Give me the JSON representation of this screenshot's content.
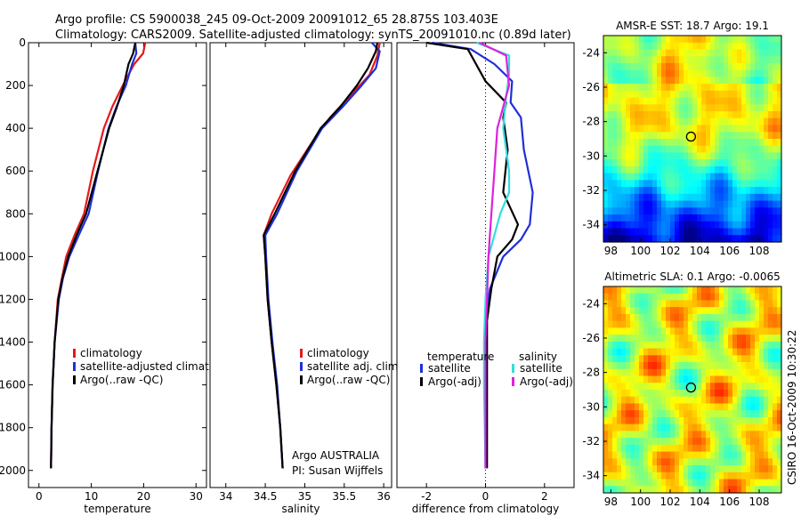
{
  "figure": {
    "title_line1": "Argo profile: CS 5900038_245 09-Oct-2009 20091012_65 28.875S 103.403E",
    "title_line2": "Climatology: CARS2009. Satellite-adjusted climatology: synTS_20091010.nc (0.89d later)",
    "side_stamp": "CSIRO 16-Oct-2009 10:30:22",
    "float_note_line1": "Argo AUSTRALIA",
    "float_note_line2": "PI: Susan Wijffels",
    "colors": {
      "climatology": "#e41a1c",
      "satellite": "#1f2fd8",
      "argo": "#000000",
      "satellite_salinity": "#33dddd",
      "argo_salinity": "#dd22dd"
    }
  },
  "chart_data": [
    {
      "type": "line",
      "id": "temperature",
      "xlabel": "temperature",
      "ylabel": "",
      "xlim": [
        -2,
        32
      ],
      "ylim": [
        2080,
        0
      ],
      "xticks": [
        0,
        10,
        20,
        30
      ],
      "yticks": [
        0,
        200,
        400,
        600,
        800,
        1000,
        1200,
        1400,
        1600,
        1800,
        2000
      ],
      "legend_position": "lower-middle",
      "legend": [
        "climatology",
        "satellite-adjusted climatolog",
        "Argo(..raw -QC)"
      ],
      "series": [
        {
          "name": "climatology",
          "color": "#e41a1c",
          "x": [
            20.3,
            19.9,
            18.2,
            16.0,
            14.0,
            12.4,
            10.3,
            8.6,
            6.8,
            5.2,
            4.4,
            3.6,
            3.0,
            2.6,
            2.4,
            2.3
          ],
          "y": [
            0,
            50,
            100,
            200,
            300,
            400,
            600,
            800,
            900,
            1000,
            1100,
            1200,
            1400,
            1600,
            1800,
            1990
          ]
        },
        {
          "name": "satellite-adjusted climatolog",
          "color": "#1f2fd8",
          "x": [
            18.4,
            18.6,
            17.8,
            16.6,
            14.8,
            13.3,
            11.3,
            9.5,
            7.6,
            5.8,
            4.6,
            3.8,
            3.0,
            2.6,
            2.4,
            2.3
          ],
          "y": [
            0,
            50,
            100,
            200,
            300,
            400,
            600,
            800,
            900,
            1000,
            1100,
            1200,
            1400,
            1600,
            1800,
            1990
          ]
        },
        {
          "name": "Argo(..raw -QC)",
          "color": "#000000",
          "x": [
            18.4,
            18.0,
            17.1,
            16.2,
            14.9,
            13.4,
            11.2,
            9.0,
            7.2,
            5.6,
            4.5,
            3.7,
            3.0,
            2.6,
            2.4,
            2.3
          ],
          "y": [
            0,
            50,
            100,
            200,
            300,
            400,
            600,
            800,
            900,
            1000,
            1100,
            1200,
            1400,
            1600,
            1800,
            1990
          ]
        }
      ]
    },
    {
      "type": "line",
      "id": "salinity",
      "xlabel": "salinity",
      "ylabel": "",
      "xlim": [
        33.8,
        36.1
      ],
      "ylim": [
        2080,
        0
      ],
      "xticks": [
        34,
        34.5,
        35,
        35.5,
        36
      ],
      "yticks": [],
      "legend_position": "lower-right",
      "legend": [
        "climatology",
        "satellite adj. clim.",
        "Argo(..raw -QC)"
      ],
      "series": [
        {
          "name": "climatology",
          "color": "#e41a1c",
          "x": [
            35.95,
            35.92,
            35.82,
            35.57,
            35.32,
            35.12,
            34.82,
            34.58,
            34.48,
            34.5,
            34.53,
            34.58,
            34.64,
            34.69,
            34.72
          ],
          "y": [
            0,
            60,
            150,
            250,
            350,
            450,
            620,
            800,
            900,
            1000,
            1200,
            1400,
            1600,
            1800,
            1990
          ]
        },
        {
          "name": "satellite adj. clim.",
          "color": "#1f2fd8",
          "x": [
            35.85,
            35.95,
            35.9,
            35.72,
            35.48,
            35.22,
            34.9,
            34.65,
            34.5,
            34.51,
            34.54,
            34.59,
            34.65,
            34.69,
            34.72
          ],
          "y": [
            0,
            40,
            120,
            200,
            300,
            400,
            600,
            800,
            900,
            1000,
            1200,
            1400,
            1600,
            1800,
            1990
          ]
        },
        {
          "name": "Argo(..raw -QC)",
          "color": "#000000",
          "x": [
            35.92,
            35.9,
            35.8,
            35.66,
            35.45,
            35.2,
            34.88,
            34.62,
            34.48,
            34.5,
            34.53,
            34.58,
            34.64,
            34.69,
            34.72
          ],
          "y": [
            0,
            40,
            120,
            200,
            300,
            400,
            600,
            800,
            900,
            1000,
            1200,
            1400,
            1600,
            1800,
            1990
          ]
        }
      ]
    },
    {
      "type": "line",
      "id": "difference",
      "xlabel": "difference from climatology",
      "ylabel": "",
      "xlim": [
        -3,
        3
      ],
      "ylim": [
        2080,
        0
      ],
      "xticks": [
        -2,
        0,
        2
      ],
      "yticks": [],
      "legend_position": "lower-middle",
      "legend_headers": [
        "temperature",
        "salinity"
      ],
      "legend": [
        "satellite",
        "Argo(-adj)",
        "satellite",
        "Argo(-adj)"
      ],
      "series": [
        {
          "name": "satellite",
          "group": "temperature",
          "color": "#1f2fd8",
          "x": [
            -1.8,
            -0.5,
            0.3,
            0.9,
            0.85,
            1.2,
            1.3,
            1.6,
            1.5,
            1.2,
            0.6,
            0.15,
            0.0,
            0.0,
            0.0
          ],
          "y": [
            0,
            30,
            100,
            180,
            280,
            350,
            500,
            700,
            850,
            920,
            1000,
            1150,
            1300,
            1600,
            1990
          ]
        },
        {
          "name": "Argo(-adj)",
          "group": "temperature",
          "color": "#000000",
          "x": [
            -2.0,
            -0.6,
            0.0,
            0.7,
            0.6,
            0.75,
            0.6,
            1.1,
            0.9,
            0.4,
            0.2,
            0.05,
            0.05,
            0.05,
            0.05
          ],
          "y": [
            0,
            30,
            180,
            280,
            350,
            500,
            700,
            850,
            920,
            1000,
            1150,
            1300,
            1400,
            1600,
            1990
          ]
        },
        {
          "name": "satellite",
          "group": "salinity",
          "color": "#33dddd",
          "x": [
            -0.3,
            0.8,
            0.8,
            0.7,
            0.6,
            0.8,
            0.8,
            0.5,
            0.3,
            0.1,
            0.0,
            -0.05,
            -0.05,
            0.0
          ],
          "y": [
            0,
            60,
            150,
            250,
            400,
            600,
            700,
            800,
            900,
            1000,
            1200,
            1400,
            1600,
            1990
          ]
        },
        {
          "name": "Argo(-adj)",
          "group": "salinity",
          "color": "#dd22dd",
          "x": [
            -0.2,
            0.7,
            0.8,
            0.6,
            0.4,
            0.3,
            0.2,
            0.1,
            0.05,
            0.0,
            0.0,
            0.0
          ],
          "y": [
            0,
            60,
            200,
            300,
            400,
            600,
            800,
            1000,
            1200,
            1400,
            1600,
            1990
          ]
        }
      ]
    },
    {
      "type": "heatmap",
      "id": "sst_map",
      "title": "AMSR-E SST: 18.7 Argo: 19.1",
      "xlim": [
        97.5,
        109.5
      ],
      "ylim": [
        -35,
        -23
      ],
      "xticks": [
        98,
        100,
        102,
        104,
        106,
        108
      ],
      "yticks": [
        -24,
        -26,
        -28,
        -30,
        -32,
        -34
      ],
      "marker": {
        "lon": 103.403,
        "lat": -28.875
      }
    },
    {
      "type": "heatmap",
      "id": "sla_map",
      "title": "Altimetric SLA: 0.1 Argo: -0.0065",
      "xlim": [
        97.5,
        109.5
      ],
      "ylim": [
        -35,
        -23
      ],
      "xticks": [
        98,
        100,
        102,
        104,
        106,
        108
      ],
      "yticks": [
        -24,
        -26,
        -28,
        -30,
        -32,
        -34
      ],
      "marker": {
        "lon": 103.403,
        "lat": -28.875
      }
    }
  ]
}
